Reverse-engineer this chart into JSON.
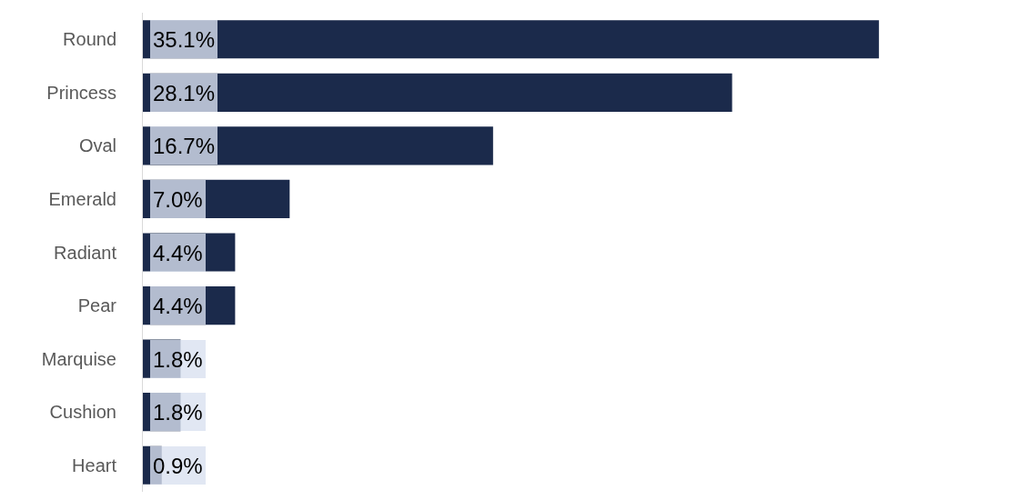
{
  "chart_data": {
    "type": "bar",
    "orientation": "horizontal",
    "categories": [
      "Round",
      "Princess",
      "Oval",
      "Emerald",
      "Radiant",
      "Pear",
      "Marquise",
      "Cushion",
      "Heart"
    ],
    "values": [
      35.1,
      28.1,
      16.7,
      7.0,
      4.4,
      4.4,
      1.8,
      1.8,
      0.9
    ],
    "value_labels": [
      "35.1%",
      "28.1%",
      "16.7%",
      "7.0%",
      "4.4%",
      "4.4%",
      "1.8%",
      "1.8%",
      "0.9%"
    ],
    "color": "#1b2a4b",
    "tick_labels": "y"
  }
}
